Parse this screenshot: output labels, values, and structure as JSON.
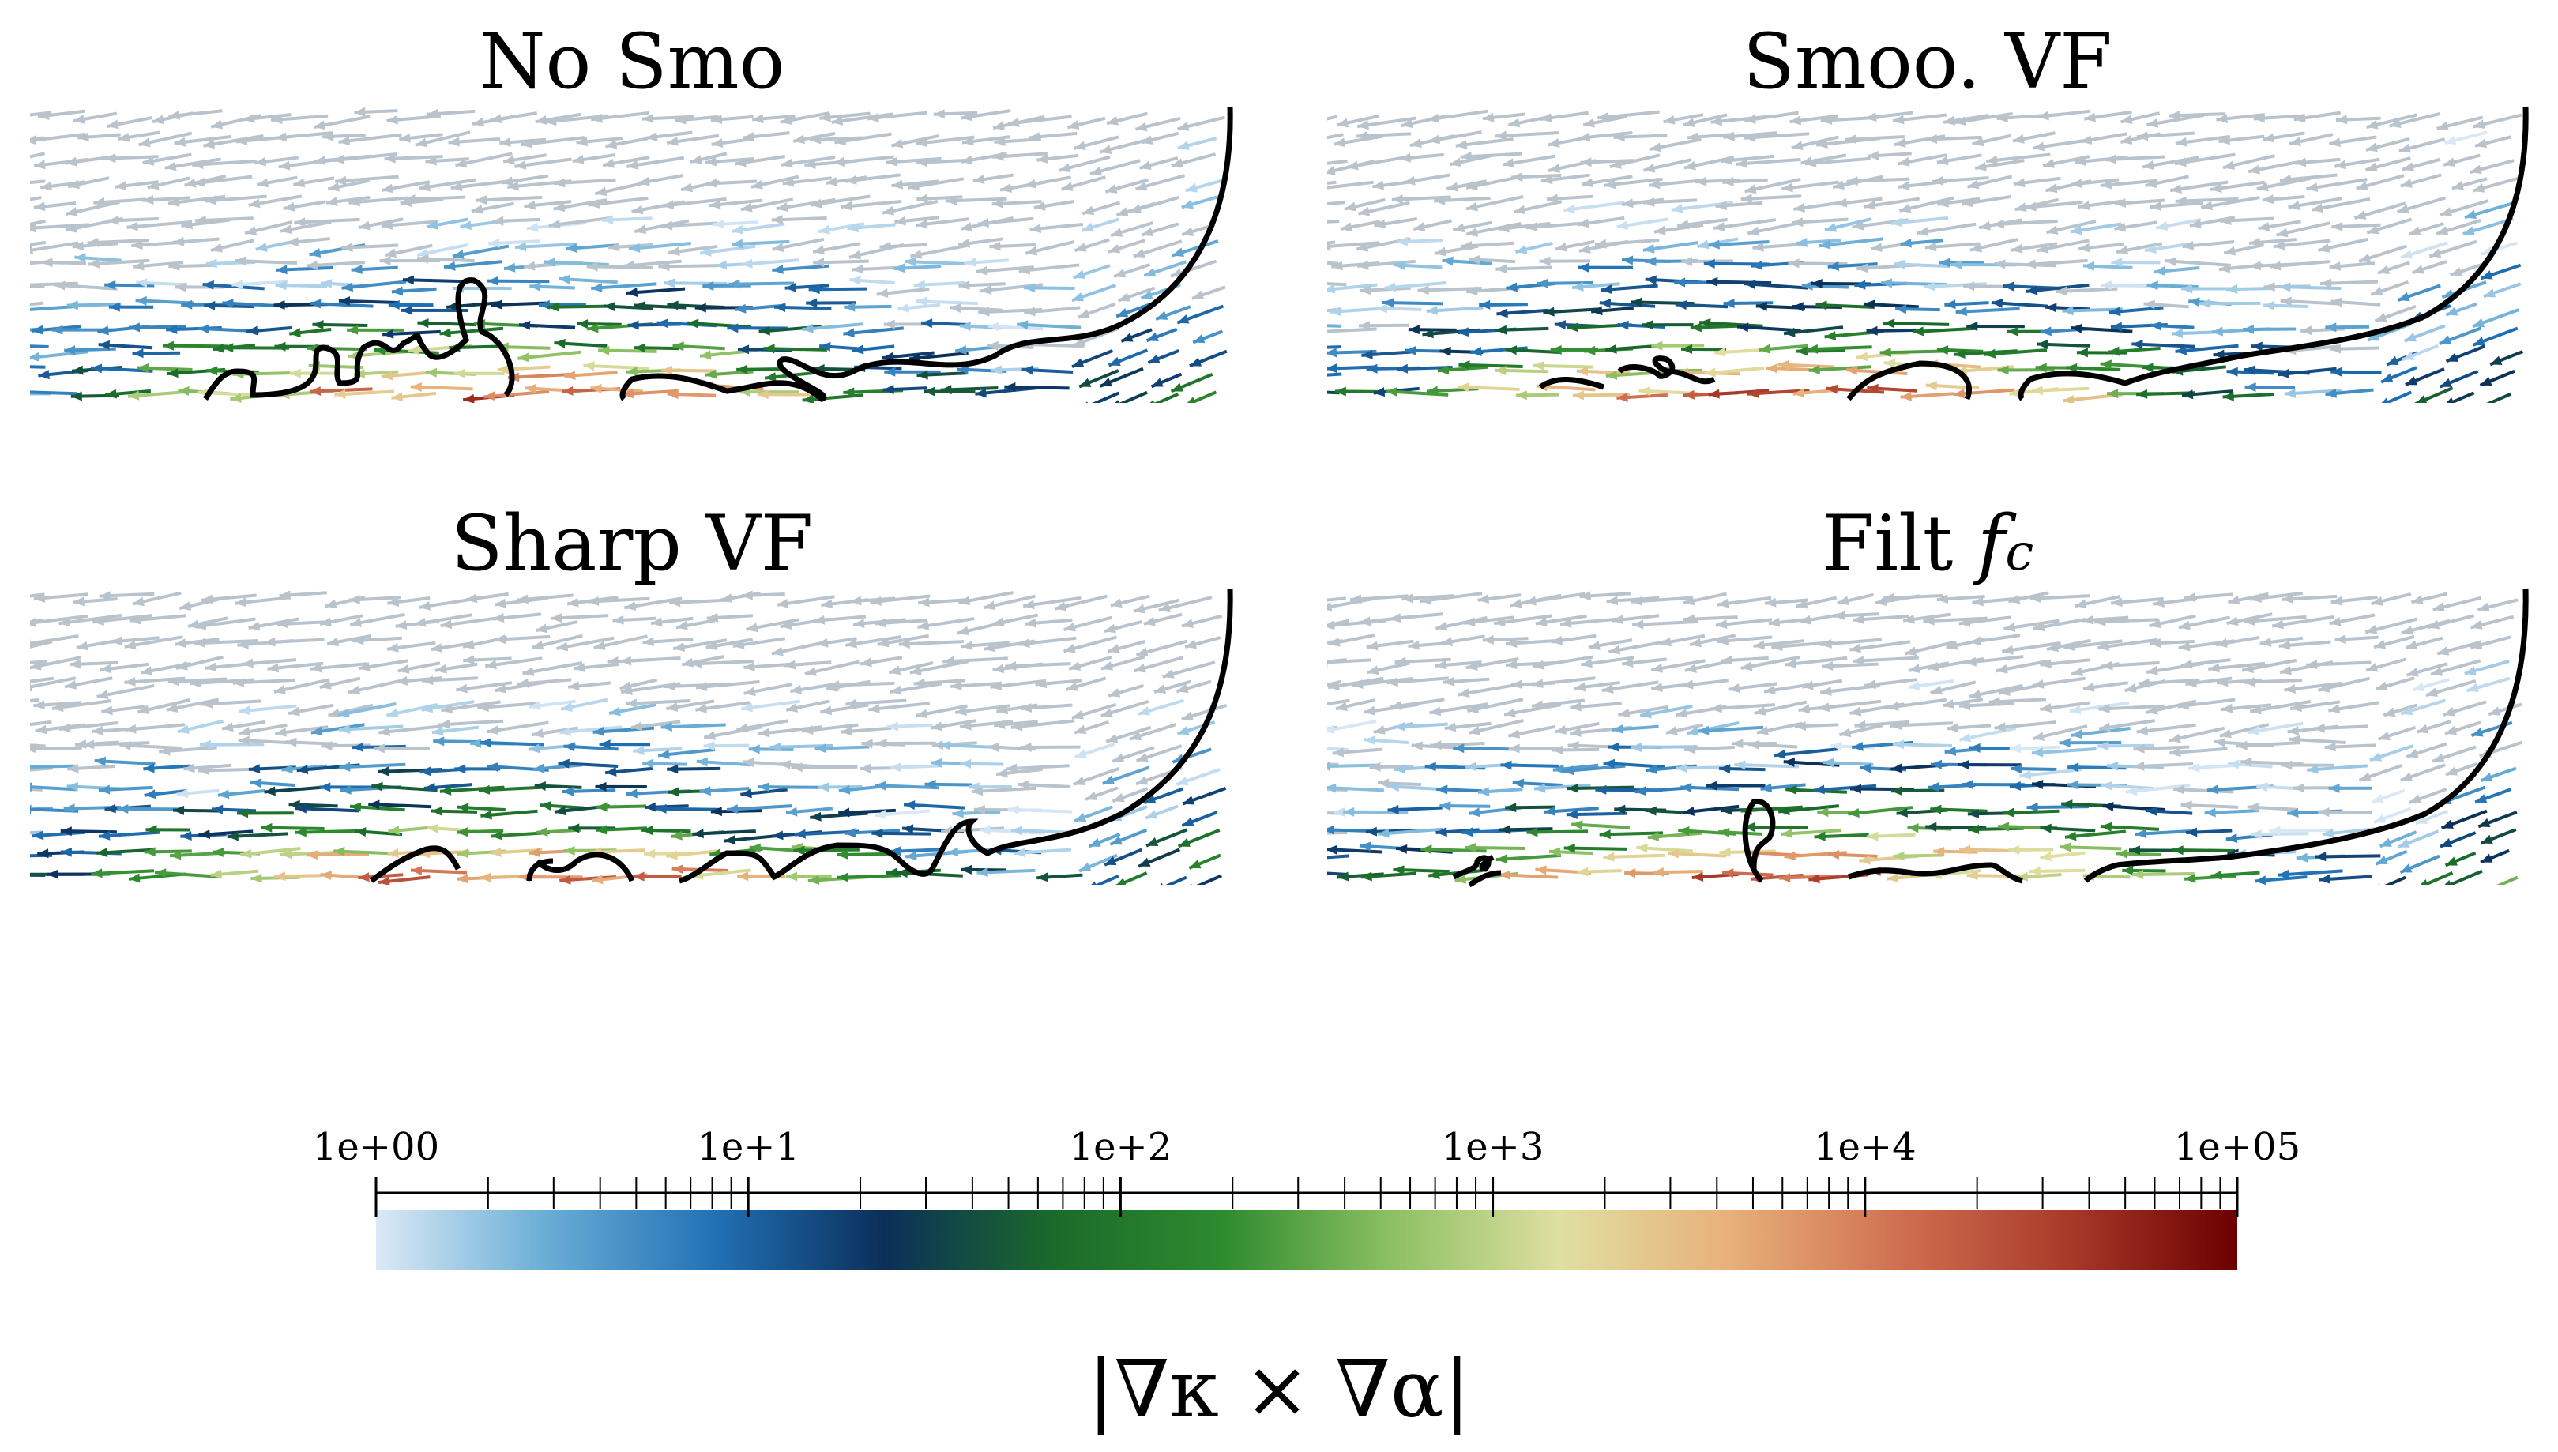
{
  "panels": [
    {
      "title": "No Smo",
      "title_sub": ""
    },
    {
      "title": "Smoo. VF",
      "title_sub": ""
    },
    {
      "title": "Sharp VF",
      "title_sub": ""
    },
    {
      "title": "Filt f",
      "title_main": "Filt ",
      "title_var": "f",
      "title_sub": "c"
    }
  ],
  "colorbar": {
    "title": "|∇κ × ∇α|",
    "scale": "log",
    "min": 1,
    "max": 100000,
    "tick_labels": [
      "1e+00",
      "1e+1",
      "1e+2",
      "1e+3",
      "1e+4",
      "1e+05"
    ],
    "tick_values": [
      1,
      10,
      100,
      1000,
      10000,
      100000
    ],
    "colors": [
      "#dbe9f6",
      "#6aaed6",
      "#2171b5",
      "#0b2f5a",
      "#1a6a2a",
      "#2e8b2e",
      "#8cc063",
      "#e0dfa0",
      "#e8b07a",
      "#d07050",
      "#a83a2a",
      "#6b0000"
    ]
  }
}
